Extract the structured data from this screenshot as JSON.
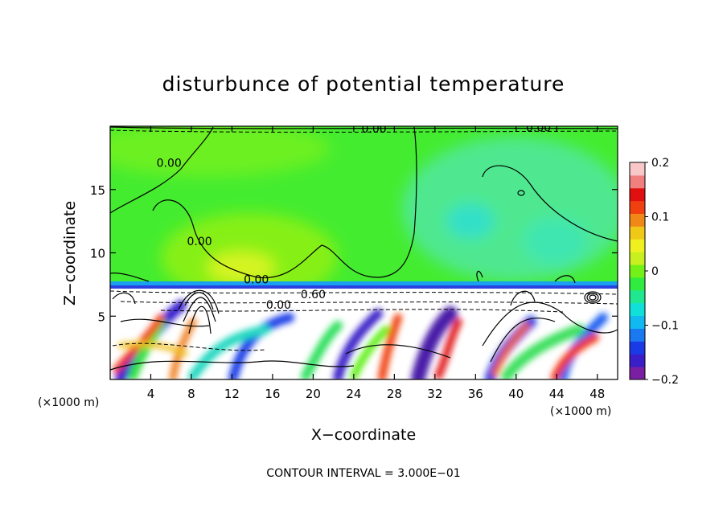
{
  "chart_data": {
    "type": "heatmap",
    "title": "disturbunce of potential temperature",
    "xlabel": "X−coordinate",
    "ylabel": "Z−coordinate",
    "x_unit_left": "(×1000 m)",
    "x_unit_right": "(×1000 m)",
    "footer": "CONTOUR INTERVAL = 3.000E−01",
    "xlim": [
      0,
      50
    ],
    "ylim": [
      0,
      20
    ],
    "x_ticks": [
      4,
      8,
      12,
      16,
      20,
      24,
      28,
      32,
      36,
      40,
      44,
      48
    ],
    "y_ticks": [
      5,
      10,
      15
    ],
    "colorbar": {
      "range": [
        -0.2,
        0.2
      ],
      "tick_values": [
        0.2,
        0.1,
        0,
        -0.1,
        -0.2
      ],
      "tick_labels": [
        "0.2",
        "0.1",
        "0",
        "−0.1",
        "−0.2"
      ],
      "colors": [
        "#7a1fa2",
        "#3a1fc8",
        "#1a3ae6",
        "#1a78f0",
        "#12b8f0",
        "#10e0d8",
        "#20e890",
        "#30ec40",
        "#72f018",
        "#c8f020",
        "#f0f020",
        "#f0c818",
        "#f08818",
        "#f04010",
        "#e01010",
        "#f08080",
        "#f8c8c8"
      ]
    },
    "contour_labels": [
      {
        "text": "0.00",
        "x": 26.0,
        "z": 19.5
      },
      {
        "text": "0.00",
        "x": 42.2,
        "z": 19.6
      },
      {
        "text": "0.00",
        "x": 5.8,
        "z": 16.8
      },
      {
        "text": "0.00",
        "x": 8.8,
        "z": 10.6
      },
      {
        "text": "0.00",
        "x": 14.4,
        "z": 7.6
      },
      {
        "text": "0.00",
        "x": 16.6,
        "z": 5.6
      },
      {
        "text": "0.60",
        "x": 20.0,
        "z": 6.4
      }
    ]
  }
}
